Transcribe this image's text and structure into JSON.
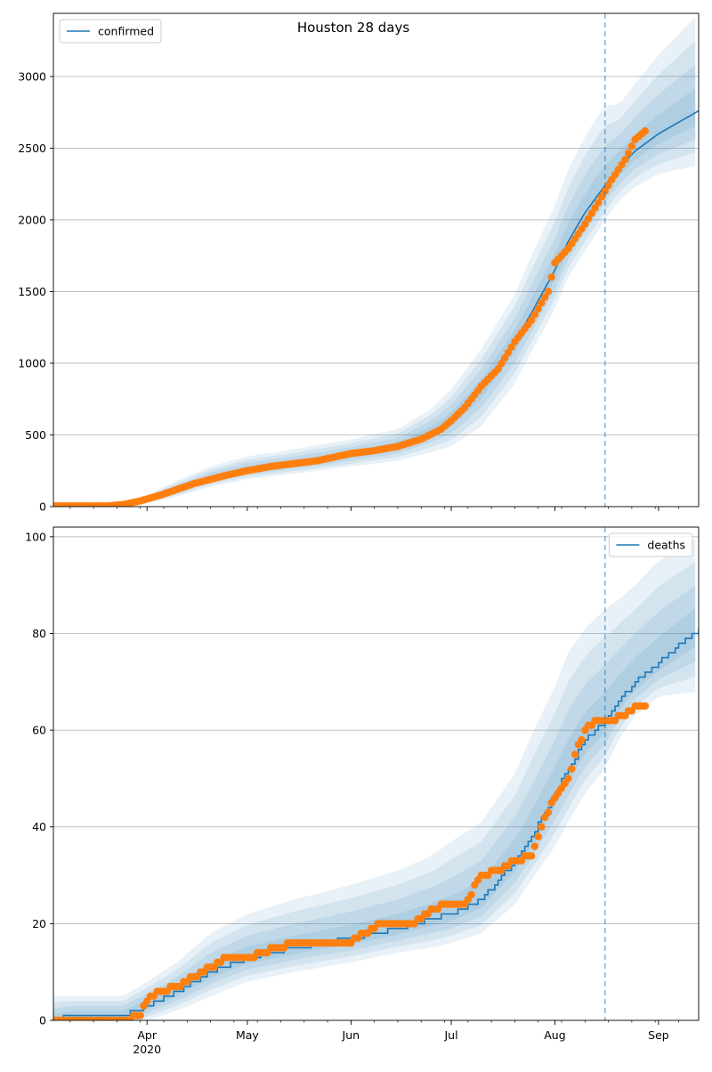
{
  "suptitle": "Houston 28 days",
  "x_ticks": [
    "Apr",
    "May",
    "Jun",
    "Jul",
    "Aug",
    "Sep"
  ],
  "x_tick_dates": [
    "2020-04-01",
    "2020-05-01",
    "2020-06-01",
    "2020-07-01",
    "2020-08-01",
    "2020-09-01"
  ],
  "x_year_label": "2020",
  "x_start": "2020-03-04",
  "x_end": "2020-09-13",
  "forecast_date": "2020-08-16",
  "colors": {
    "model": "#1f77b4",
    "observed": "#ff7f0e",
    "band": "#1f77b4",
    "grid": "#b0b0b0",
    "vline": "#1f77b4"
  },
  "chart_data": [
    {
      "type": "line",
      "legend": [
        "confirmed"
      ],
      "legend_position": "top-left",
      "ylim": [
        0,
        3440
      ],
      "yticks": [
        0,
        500,
        1000,
        1500,
        2000,
        2500,
        3000
      ],
      "grid": "y",
      "series": [
        {
          "name": "confirmed",
          "style": "line",
          "x": [
            "2020-03-04",
            "2020-03-20",
            "2020-03-27",
            "2020-04-01",
            "2020-04-10",
            "2020-04-20",
            "2020-05-01",
            "2020-05-15",
            "2020-06-01",
            "2020-06-15",
            "2020-06-25",
            "2020-07-01",
            "2020-07-10",
            "2020-07-20",
            "2020-07-25",
            "2020-08-01",
            "2020-08-05",
            "2020-08-10",
            "2020-08-16",
            "2020-08-20",
            "2020-08-25",
            "2020-09-01",
            "2020-09-13"
          ],
          "y": [
            5,
            10,
            20,
            50,
            120,
            200,
            260,
            300,
            360,
            420,
            520,
            600,
            820,
            1150,
            1350,
            1650,
            1850,
            2050,
            2240,
            2360,
            2480,
            2600,
            2760
          ],
          "band_low": [
            0,
            0,
            0,
            20,
            70,
            140,
            190,
            230,
            280,
            320,
            380,
            420,
            560,
            860,
            1080,
            1380,
            1600,
            1780,
            2000,
            2130,
            2230,
            2320,
            2380
          ],
          "band_high": [
            10,
            20,
            40,
            80,
            180,
            280,
            350,
            400,
            470,
            540,
            680,
            820,
            1100,
            1480,
            1750,
            2100,
            2350,
            2580,
            2800,
            2800,
            2950,
            3150,
            3440
          ]
        },
        {
          "name": "observed confirmed",
          "style": "points",
          "x": [
            "2020-03-04",
            "2020-03-20",
            "2020-03-25",
            "2020-03-30",
            "2020-04-05",
            "2020-04-10",
            "2020-04-15",
            "2020-04-20",
            "2020-04-25",
            "2020-05-01",
            "2020-05-08",
            "2020-05-15",
            "2020-05-22",
            "2020-06-01",
            "2020-06-08",
            "2020-06-15",
            "2020-06-22",
            "2020-06-28",
            "2020-07-01",
            "2020-07-05",
            "2020-07-10",
            "2020-07-15",
            "2020-07-20",
            "2020-07-25",
            "2020-07-30",
            "2020-08-01",
            "2020-08-05",
            "2020-08-10",
            "2020-08-14",
            "2020-08-18",
            "2020-08-22",
            "2020-08-25",
            "2020-08-28"
          ],
          "y": [
            5,
            5,
            15,
            40,
            80,
            120,
            160,
            190,
            220,
            250,
            280,
            300,
            320,
            370,
            390,
            420,
            470,
            540,
            600,
            690,
            840,
            960,
            1150,
            1300,
            1500,
            1700,
            1800,
            1970,
            2120,
            2280,
            2420,
            2560,
            2620
          ]
        }
      ]
    },
    {
      "type": "line",
      "legend": [
        "deaths"
      ],
      "legend_position": "top-right",
      "ylim": [
        0,
        102
      ],
      "yticks": [
        0,
        20,
        40,
        60,
        80,
        100
      ],
      "grid": "y",
      "series": [
        {
          "name": "deaths",
          "style": "step",
          "x": [
            "2020-03-04",
            "2020-03-10",
            "2020-03-25",
            "2020-04-01",
            "2020-04-10",
            "2020-04-20",
            "2020-05-01",
            "2020-05-15",
            "2020-06-01",
            "2020-06-15",
            "2020-06-25",
            "2020-07-01",
            "2020-07-10",
            "2020-07-20",
            "2020-07-25",
            "2020-08-01",
            "2020-08-05",
            "2020-08-10",
            "2020-08-16",
            "2020-08-20",
            "2020-08-25",
            "2020-09-01",
            "2020-09-13"
          ],
          "y": [
            0,
            1,
            1,
            3,
            6,
            10,
            13,
            15,
            17,
            19,
            21,
            22,
            25,
            33,
            38,
            47,
            52,
            58,
            62,
            66,
            70,
            74,
            81
          ],
          "band_low": [
            0,
            0,
            0,
            0,
            2,
            5,
            8,
            10,
            12,
            14,
            15,
            16,
            18,
            24,
            29,
            36,
            41,
            47,
            52,
            58,
            63,
            67,
            68
          ],
          "band_high": [
            5,
            5,
            5,
            8,
            12,
            18,
            22,
            25,
            28,
            31,
            34,
            37,
            41,
            51,
            59,
            69,
            76,
            81,
            85,
            87,
            90,
            95,
            100
          ]
        },
        {
          "name": "observed deaths",
          "style": "points",
          "x": [
            "2020-03-04",
            "2020-03-25",
            "2020-03-30",
            "2020-04-01",
            "2020-04-05",
            "2020-04-10",
            "2020-04-15",
            "2020-04-20",
            "2020-04-25",
            "2020-05-01",
            "2020-05-10",
            "2020-05-15",
            "2020-05-20",
            "2020-06-01",
            "2020-06-05",
            "2020-06-10",
            "2020-06-15",
            "2020-06-20",
            "2020-06-25",
            "2020-07-01",
            "2020-07-05",
            "2020-07-10",
            "2020-07-15",
            "2020-07-20",
            "2020-07-25",
            "2020-07-28",
            "2020-08-01",
            "2020-08-05",
            "2020-08-08",
            "2020-08-11",
            "2020-08-14",
            "2020-08-18",
            "2020-08-22",
            "2020-08-25",
            "2020-08-28"
          ],
          "y": [
            0,
            0,
            1,
            4,
            6,
            7,
            9,
            11,
            13,
            13,
            15,
            16,
            16,
            16,
            18,
            20,
            20,
            20,
            23,
            24,
            24,
            30,
            31,
            33,
            34,
            40,
            46,
            50,
            57,
            61,
            62,
            62,
            63,
            65,
            65
          ]
        }
      ]
    }
  ]
}
